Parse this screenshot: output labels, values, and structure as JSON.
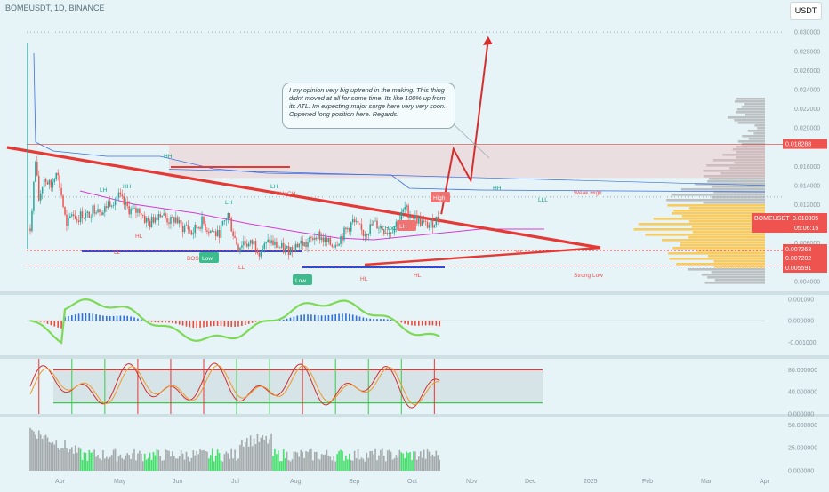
{
  "header": {
    "symbol_title": "BOMEUSDT, 1D, BINANCE",
    "currency": "USDT"
  },
  "annotation_note": "I my opinion very big uptrend in the making. This thing didnt moved at all for some time. Its like 100% up from its ATL. Im expecting major surge here very very soon. Oppened long position here. Regards!",
  "colors": {
    "background": "#e6f3f7",
    "bull": "#26a69a",
    "bear": "#ef5350",
    "trendline": "#e53935",
    "arrow": "#d32f2f",
    "volume_profile": "#9e9e9e",
    "volume_profile_highlight": "#f9c74f",
    "price_label": "#ef5350",
    "level_label": "#e53935"
  },
  "chart_data": [
    {
      "type": "line",
      "name": "price-panel",
      "x_axis_ticks": [
        "Apr",
        "May",
        "Jun",
        "Jul",
        "Aug",
        "Sep",
        "Oct",
        "Nov",
        "Dec",
        "2025",
        "Feb",
        "Mar",
        "Apr"
      ],
      "y_ticks": [
        "0.030000",
        "0.028000",
        "0.026000",
        "0.024000",
        "0.022000",
        "0.020000",
        "0.016000",
        "0.014000",
        "0.012000",
        "0.008000",
        "0.004000"
      ],
      "ylim": [
        0.0037,
        0.0315
      ],
      "close_path": [
        [
          0,
          0.0095
        ],
        [
          3,
          0.0165
        ],
        [
          5,
          0.0125
        ],
        [
          8,
          0.0148
        ],
        [
          12,
          0.0138
        ],
        [
          15,
          0.0158
        ],
        [
          18,
          0.013
        ],
        [
          21,
          0.0095
        ],
        [
          24,
          0.0112
        ],
        [
          27,
          0.0105
        ],
        [
          30,
          0.011
        ],
        [
          33,
          0.0108
        ],
        [
          36,
          0.0115
        ],
        [
          39,
          0.0118
        ],
        [
          42,
          0.0112
        ],
        [
          45,
          0.0122
        ],
        [
          48,
          0.0125
        ],
        [
          51,
          0.0128
        ],
        [
          54,
          0.012
        ],
        [
          57,
          0.0115
        ],
        [
          60,
          0.0112
        ],
        [
          63,
          0.0115
        ],
        [
          66,
          0.0105
        ],
        [
          69,
          0.01
        ],
        [
          72,
          0.0108
        ],
        [
          75,
          0.0112
        ],
        [
          78,
          0.0106
        ],
        [
          81,
          0.0102
        ],
        [
          84,
          0.0106
        ],
        [
          87,
          0.0095
        ],
        [
          90,
          0.0098
        ],
        [
          93,
          0.009
        ],
        [
          96,
          0.0096
        ],
        [
          99,
          0.0102
        ],
        [
          102,
          0.0095
        ],
        [
          105,
          0.0092
        ],
        [
          108,
          0.0088
        ],
        [
          111,
          0.0098
        ],
        [
          114,
          0.011
        ],
        [
          117,
          0.009
        ],
        [
          120,
          0.0075
        ],
        [
          123,
          0.0082
        ],
        [
          126,
          0.0078
        ],
        [
          129,
          0.008
        ],
        [
          132,
          0.0072
        ],
        [
          135,
          0.0076
        ],
        [
          138,
          0.0082
        ],
        [
          141,
          0.0078
        ],
        [
          144,
          0.0075
        ],
        [
          147,
          0.0072
        ],
        [
          150,
          0.0074
        ],
        [
          153,
          0.0078
        ],
        [
          156,
          0.008
        ],
        [
          159,
          0.0078
        ],
        [
          162,
          0.0083
        ],
        [
          165,
          0.009
        ],
        [
          168,
          0.0085
        ],
        [
          171,
          0.008
        ],
        [
          174,
          0.0078
        ],
        [
          177,
          0.0082
        ],
        [
          180,
          0.0088
        ],
        [
          183,
          0.0095
        ],
        [
          186,
          0.0102
        ],
        [
          189,
          0.0096
        ],
        [
          192,
          0.009
        ],
        [
          195,
          0.0094
        ],
        [
          198,
          0.01
        ],
        [
          201,
          0.0098
        ],
        [
          204,
          0.0094
        ],
        [
          207,
          0.0092
        ],
        [
          210,
          0.0098
        ],
        [
          213,
          0.0105
        ],
        [
          216,
          0.0116
        ],
        [
          219,
          0.011
        ],
        [
          222,
          0.0106
        ],
        [
          225,
          0.0102
        ],
        [
          228,
          0.0098
        ],
        [
          231,
          0.01
        ],
        [
          234,
          0.0104
        ],
        [
          237,
          0.011
        ]
      ],
      "projection": [
        [
          237,
          0.011
        ],
        [
          244,
          0.0178
        ],
        [
          254,
          0.0145
        ],
        [
          264,
          0.0292
        ]
      ],
      "horizontal_levels": [
        0.018288,
        0.007263,
        0.007202,
        0.005591
      ],
      "price_labels": {
        "top": "0.018288",
        "current": "BOMEUSDT",
        "current_value": "0.010305",
        "countdown": "05:06:15",
        "l1": "0.007263",
        "l2": "0.007202",
        "l3": "0.005591"
      },
      "labels": {
        "hh": "HH",
        "lh": "LH",
        "hl": "HL",
        "ll": "LL",
        "low": "Low",
        "high": "High",
        "choch": "CHoCH",
        "bos": "BOS",
        "lll": "LLL",
        "weak_high": "Weak High",
        "strong_low": "Strong Low"
      }
    },
    {
      "type": "bar",
      "name": "momentum-oscillator",
      "y_ticks": [
        "0.001000",
        "0.000000",
        "-0.001000"
      ],
      "ylim": [
        -0.0016,
        0.0012
      ]
    },
    {
      "type": "line",
      "name": "stochastic-rsi",
      "y_ticks": [
        "80.000000",
        "40.000000",
        "0.000000"
      ],
      "ylim": [
        0,
        100
      ],
      "bands": [
        80,
        20
      ]
    },
    {
      "type": "bar",
      "name": "volume-bars",
      "y_ticks": [
        "50.000000",
        "25.000000",
        "0.000000"
      ],
      "ylim": [
        0,
        58
      ]
    }
  ]
}
